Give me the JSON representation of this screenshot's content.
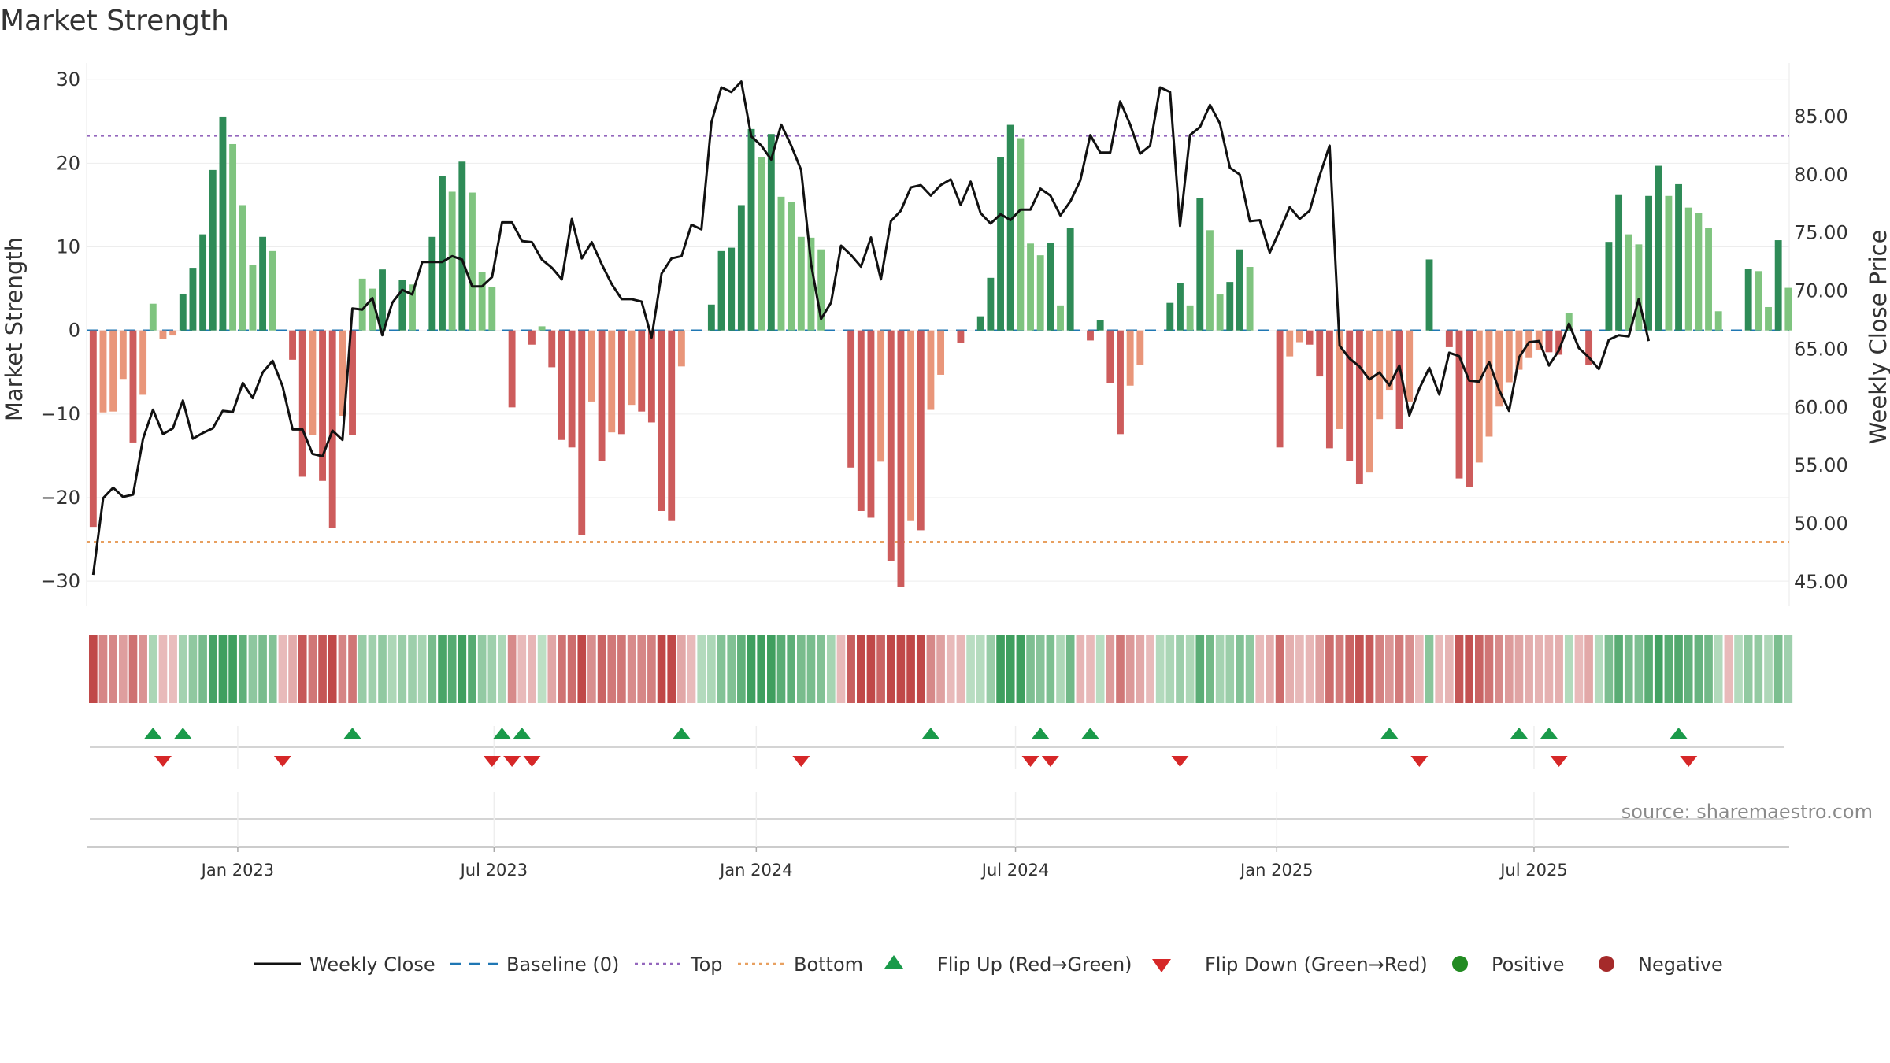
{
  "chart_data": {
    "type": "bar",
    "title": "Market Strength",
    "ylabel": "Market Strength",
    "ylabel_right": "Weekly Close Price",
    "ylim": [
      -33,
      32
    ],
    "ylim_right": [
      42.9,
      89.6
    ],
    "yticks": [
      30,
      20,
      10,
      0,
      -10,
      -20,
      -30
    ],
    "yticks_right": [
      "85.00",
      "80.00",
      "75.00",
      "70.00",
      "65.00",
      "60.00",
      "55.00",
      "50.00",
      "45.00"
    ],
    "x_tick_labels": [
      "Jan 2023",
      "Jul 2023",
      "Jan 2024",
      "Jul 2024",
      "Jan 2025",
      "Jul 2025"
    ],
    "x_tick_positions": [
      14.5,
      40.2,
      66.5,
      92.5,
      118.7,
      144.5
    ],
    "top_level": 23.3,
    "bottom_level": -25.3,
    "source": "source: sharemaestro.com",
    "colors": {
      "pos_strong": "#2e8b57",
      "pos_weak": "#7fc47f",
      "neg_strong": "#cd5c5c",
      "neg_weak": "#e9967a",
      "line": "#111111",
      "baseline": "#1f77b4",
      "top": "#9467bd",
      "bottom": "#e8a060",
      "flip_up": "#1a9a4a",
      "flip_down": "#d62728",
      "positive": "#228b22",
      "negative": "#a52a2a"
    },
    "legend": [
      {
        "label": "Weekly Close",
        "symbol": "line"
      },
      {
        "label": "Baseline (0)",
        "symbol": "dash"
      },
      {
        "label": "Top",
        "symbol": "dot-purple"
      },
      {
        "label": "Bottom",
        "symbol": "dot-orange"
      },
      {
        "label": "Flip Up (Red→Green)",
        "symbol": "tri-up"
      },
      {
        "label": "Flip Down (Green→Red)",
        "symbol": "tri-down"
      },
      {
        "label": "Positive",
        "symbol": "circle-green"
      },
      {
        "label": "Negative",
        "symbol": "circle-red"
      }
    ],
    "strength": [
      -23.5,
      -9.8,
      -9.7,
      -5.8,
      -13.4,
      -7.7,
      3.2,
      -1.0,
      -0.6,
      4.4,
      7.5,
      11.5,
      19.2,
      25.6,
      22.3,
      15.0,
      7.8,
      11.2,
      9.5,
      0.0,
      -3.5,
      -17.5,
      -12.5,
      -18.0,
      -23.6,
      -10.2,
      -12.5,
      6.2,
      5.0,
      7.3,
      0.0,
      6.0,
      5.5,
      0.0,
      11.2,
      18.5,
      16.6,
      20.2,
      16.5,
      7.0,
      5.2,
      0.0,
      -9.2,
      0.0,
      -1.7,
      0.5,
      -4.4,
      -13.1,
      -14.0,
      -24.5,
      -8.5,
      -15.6,
      -12.2,
      -12.4,
      -8.9,
      -9.7,
      -11.0,
      -21.6,
      -22.8,
      -4.3,
      0.0,
      0.0,
      3.1,
      9.5,
      9.9,
      15.0,
      24.1,
      20.7,
      23.5,
      16.0,
      15.4,
      11.2,
      11.1,
      9.7,
      0.0,
      0.0,
      -16.4,
      -21.6,
      -22.4,
      -15.7,
      -27.6,
      -30.7,
      -22.8,
      -23.9,
      -9.5,
      -5.3,
      0.0,
      -1.5,
      0.0,
      1.7,
      6.3,
      20.7,
      24.6,
      23.0,
      10.4,
      9.0,
      10.5,
      3.0,
      12.3,
      0.0,
      -1.2,
      1.2,
      -6.3,
      -12.4,
      -6.6,
      -4.1,
      0.0,
      0.0,
      3.3,
      5.7,
      3.0,
      15.8,
      12.0,
      4.3,
      5.8,
      9.7,
      7.6,
      0.0,
      0.0,
      -14.0,
      -3.1,
      -1.4,
      -1.7,
      -5.5,
      -14.1,
      -11.8,
      -15.6,
      -18.4,
      -17.0,
      -10.6,
      -7.1,
      -11.8,
      -8.5,
      0.0,
      8.5,
      0.0,
      -2.0,
      -17.7,
      -18.7,
      -15.8,
      -12.7,
      -9.1,
      -6.2,
      -4.7,
      -3.3,
      -2.3,
      -2.6,
      -2.9,
      2.1,
      0.0,
      -4.1,
      0.0,
      10.6,
      16.2,
      11.5,
      10.3,
      16.1,
      19.7,
      16.1,
      17.5,
      14.7,
      14.1,
      12.3,
      2.3,
      0.0,
      0.0,
      7.4,
      7.1,
      2.8,
      10.8,
      5.1
    ],
    "close": [
      45.6,
      52.2,
      53.1,
      52.3,
      52.5,
      57.3,
      59.8,
      57.7,
      58.2,
      60.6,
      57.3,
      57.8,
      58.2,
      59.7,
      59.6,
      62.1,
      60.8,
      63.0,
      64.0,
      61.8,
      58.1,
      58.1,
      56.0,
      55.8,
      58.0,
      57.2,
      68.5,
      68.4,
      69.4,
      66.2,
      69.0,
      70.1,
      69.7,
      72.5,
      72.5,
      72.5,
      73.0,
      72.7,
      70.4,
      70.4,
      71.2,
      75.9,
      75.9,
      74.3,
      74.2,
      72.7,
      72.0,
      71.0,
      76.2,
      72.8,
      74.2,
      72.3,
      70.6,
      69.3,
      69.3,
      69.1,
      66.0,
      71.5,
      72.8,
      73.0,
      75.7,
      75.3,
      84.5,
      87.5,
      87.1,
      88.0,
      83.3,
      82.5,
      81.3,
      84.3,
      82.5,
      80.4,
      72.3,
      67.6,
      69.0,
      73.9,
      73.1,
      72.1,
      74.6,
      71.0,
      76.0,
      76.9,
      78.9,
      79.1,
      78.2,
      79.1,
      79.6,
      77.4,
      79.4,
      76.7,
      75.8,
      76.6,
      76.1,
      77.0,
      77.0,
      78.8,
      78.2,
      76.5,
      77.7,
      79.5,
      83.4,
      81.9,
      81.9,
      86.3,
      84.3,
      81.8,
      82.5,
      87.5,
      87.1,
      75.6,
      83.4,
      84.1,
      86.0,
      84.4,
      80.6,
      80.0,
      76.0,
      76.1,
      73.3,
      75.2,
      77.2,
      76.2,
      76.9,
      79.9,
      82.5,
      65.3,
      64.2,
      63.5,
      62.4,
      63.0,
      61.9,
      63.6,
      59.3,
      61.6,
      63.4,
      61.1,
      64.7,
      64.4,
      62.3,
      62.2,
      63.9,
      61.5,
      59.7,
      64.3,
      65.6,
      65.7,
      63.6,
      64.9,
      67.2,
      65.1,
      64.3,
      63.3,
      65.8,
      66.2,
      66.1,
      69.3,
      65.7
    ],
    "heat": [
      -23.5,
      -9.8,
      -9.7,
      -5.8,
      -13.4,
      -7.7,
      3.2,
      -1.0,
      -0.6,
      4.4,
      7.5,
      11.5,
      19.2,
      25.6,
      22.3,
      15.0,
      7.8,
      11.2,
      9.5,
      -1.0,
      -3.5,
      -17.5,
      -12.5,
      -18.0,
      -23.6,
      -10.2,
      -12.5,
      6.2,
      5.0,
      7.3,
      3.0,
      6.0,
      5.5,
      4.0,
      11.2,
      18.5,
      16.6,
      20.2,
      16.5,
      7.0,
      5.2,
      3.0,
      -9.2,
      -1.0,
      -1.7,
      0.5,
      -4.4,
      -13.1,
      -14.0,
      -24.5,
      -8.5,
      -15.6,
      -12.2,
      -12.4,
      -8.9,
      -9.7,
      -11.0,
      -21.6,
      -22.8,
      -4.3,
      -1.0,
      2.0,
      3.1,
      9.5,
      9.9,
      15.0,
      24.1,
      20.7,
      23.5,
      16.0,
      15.4,
      11.2,
      11.1,
      9.7,
      4.0,
      -1.0,
      -16.4,
      -21.6,
      -22.4,
      -15.7,
      -27.6,
      -30.7,
      -22.8,
      -23.9,
      -9.5,
      -5.3,
      -1.0,
      -1.5,
      1.0,
      1.7,
      6.3,
      20.7,
      24.6,
      23.0,
      10.4,
      9.0,
      10.5,
      3.0,
      12.3,
      -2.0,
      -1.2,
      1.2,
      -6.3,
      -12.4,
      -6.6,
      -4.1,
      -1.0,
      2.0,
      3.3,
      5.7,
      3.0,
      15.8,
      12.0,
      4.3,
      5.8,
      9.7,
      7.6,
      -1.0,
      -3.0,
      -14.0,
      -3.1,
      -1.4,
      -1.7,
      -5.5,
      -14.1,
      -11.8,
      -15.6,
      -18.4,
      -17.0,
      -10.6,
      -7.1,
      -11.8,
      -8.5,
      -1.0,
      8.5,
      -1.0,
      -2.0,
      -17.7,
      -18.7,
      -15.8,
      -12.7,
      -9.1,
      -6.2,
      -4.7,
      -3.3,
      -2.3,
      -2.6,
      -2.9,
      2.1,
      -1.0,
      -4.1,
      2.0,
      10.6,
      16.2,
      11.5,
      10.3,
      16.1,
      19.7,
      16.1,
      17.5,
      14.7,
      14.1,
      12.3,
      2.3,
      -1.0,
      2.0,
      7.4,
      7.1,
      2.8,
      10.8,
      5.1
    ],
    "flips_up": [
      6,
      9,
      26,
      41,
      43,
      59,
      84,
      95,
      100,
      130,
      143,
      146,
      159
    ],
    "flips_down": [
      7,
      19,
      40,
      42,
      44,
      71,
      94,
      96,
      109,
      133,
      147,
      160
    ]
  }
}
